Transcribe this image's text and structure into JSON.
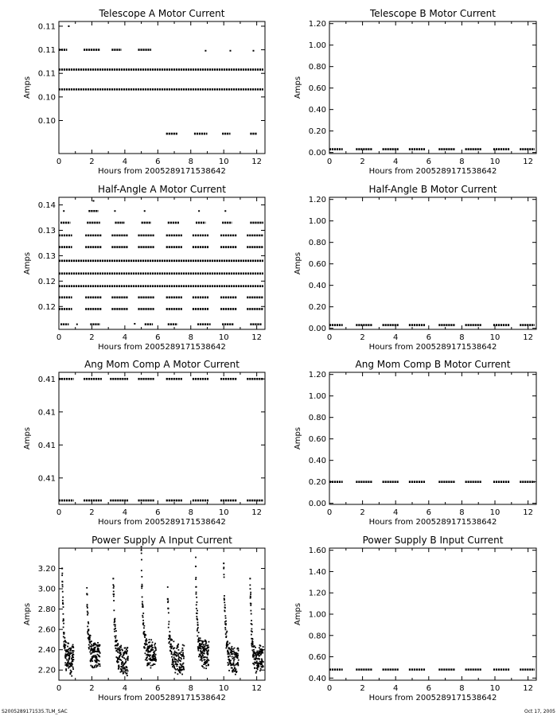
{
  "footer": {
    "left": "S2005289171535.TLM_SAC",
    "right": "Oct 17, 2005"
  },
  "chart_data": [
    {
      "type": "scatter",
      "title": "Telescope A Motor Current",
      "xlabel": "Hours from 2005289171538642",
      "ylabel": "Amps",
      "xlim": [
        0,
        12.5
      ],
      "xticks": [
        "0",
        "2",
        "4",
        "6",
        "8",
        "10",
        "12"
      ],
      "ylim": [
        0.0975,
        0.1115
      ],
      "yticks": [
        {
          "v": 0.111,
          "label": "0.11"
        },
        {
          "v": 0.1085,
          "label": "0.11"
        },
        {
          "v": 0.106,
          "label": "0.11"
        },
        {
          "v": 0.1035,
          "label": "0.10"
        },
        {
          "v": 0.101,
          "label": "0.10"
        }
      ],
      "levels": [
        {
          "v": 0.1085,
          "segments": [
            [
              0.0,
              0.5
            ],
            [
              1.5,
              2.5
            ],
            [
              3.2,
              3.8
            ],
            [
              4.8,
              5.6
            ]
          ]
        },
        {
          "v": 0.1064,
          "segments": [
            [
              0.0,
              12.4
            ]
          ]
        },
        {
          "v": 0.1043,
          "segments": [
            [
              0.0,
              12.4
            ]
          ]
        },
        {
          "v": 0.0996,
          "segments": [
            [
              6.5,
              7.2
            ],
            [
              8.2,
              9.0
            ],
            [
              9.9,
              10.4
            ],
            [
              11.6,
              12.0
            ]
          ]
        }
      ],
      "points": [
        [
          0.6,
          0.111
        ],
        [
          8.9,
          0.1084
        ],
        [
          10.4,
          0.1084
        ],
        [
          11.8,
          0.1084
        ]
      ]
    },
    {
      "type": "scatter",
      "title": "Telescope B Motor Current",
      "xlabel": "Hours from 2005289171538642",
      "ylabel": "Amps",
      "xlim": [
        0,
        12.5
      ],
      "xticks": [
        "0",
        "2",
        "4",
        "6",
        "8",
        "10",
        "12"
      ],
      "ylim": [
        -0.01,
        1.22
      ],
      "yticks": [
        {
          "v": 1.2,
          "label": "1.20"
        },
        {
          "v": 1.0,
          "label": "1.00"
        },
        {
          "v": 0.8,
          "label": "0.80"
        },
        {
          "v": 0.6,
          "label": "0.60"
        },
        {
          "v": 0.4,
          "label": "0.40"
        },
        {
          "v": 0.2,
          "label": "0.20"
        },
        {
          "v": 0.0,
          "label": "0.00"
        }
      ],
      "levels": [
        {
          "v": 0.03,
          "segments": [
            [
              0.0,
              0.8
            ],
            [
              1.6,
              2.6
            ],
            [
              3.2,
              4.2
            ],
            [
              4.8,
              5.8
            ],
            [
              6.6,
              7.6
            ],
            [
              8.2,
              9.2
            ],
            [
              9.9,
              10.9
            ],
            [
              11.5,
              12.4
            ]
          ]
        }
      ],
      "points": []
    },
    {
      "type": "scatter",
      "title": "Half-Angle A Motor Current",
      "xlabel": "Hours from 2005289171538642",
      "ylabel": "Amps",
      "xlim": [
        0,
        12.5
      ],
      "xticks": [
        "0",
        "2",
        "4",
        "6",
        "8",
        "10",
        "12"
      ],
      "ylim": [
        0.1155,
        0.1415
      ],
      "yticks": [
        {
          "v": 0.14,
          "label": "0.14"
        },
        {
          "v": 0.135,
          "label": "0.13"
        },
        {
          "v": 0.13,
          "label": "0.13"
        },
        {
          "v": 0.125,
          "label": "0.12"
        },
        {
          "v": 0.12,
          "label": "0.12"
        }
      ],
      "levels": [
        {
          "v": 0.1388,
          "segments": [
            [
              1.8,
              2.4
            ]
          ]
        },
        {
          "v": 0.1365,
          "segments": [
            [
              0.1,
              0.7
            ],
            [
              1.7,
              2.5
            ],
            [
              3.4,
              4.0
            ],
            [
              5.0,
              5.6
            ],
            [
              6.6,
              7.3
            ],
            [
              8.3,
              8.9
            ],
            [
              9.9,
              10.5
            ],
            [
              11.6,
              12.4
            ]
          ]
        },
        {
          "v": 0.134,
          "segments": [
            [
              0.0,
              0.8
            ],
            [
              1.6,
              2.6
            ],
            [
              3.2,
              4.2
            ],
            [
              4.8,
              5.8
            ],
            [
              6.5,
              7.5
            ],
            [
              8.1,
              9.1
            ],
            [
              9.8,
              10.8
            ],
            [
              11.4,
              12.4
            ]
          ]
        },
        {
          "v": 0.1317,
          "segments": [
            [
              0.0,
              0.8
            ],
            [
              1.6,
              2.6
            ],
            [
              3.2,
              4.2
            ],
            [
              4.8,
              5.8
            ],
            [
              6.5,
              7.5
            ],
            [
              8.1,
              9.1
            ],
            [
              9.8,
              10.8
            ],
            [
              11.4,
              12.4
            ]
          ]
        },
        {
          "v": 0.129,
          "segments": [
            [
              0.0,
              12.4
            ]
          ]
        },
        {
          "v": 0.1265,
          "segments": [
            [
              0.0,
              12.4
            ]
          ]
        },
        {
          "v": 0.124,
          "segments": [
            [
              0.0,
              12.4
            ]
          ]
        },
        {
          "v": 0.1218,
          "segments": [
            [
              0.0,
              0.8
            ],
            [
              1.6,
              2.6
            ],
            [
              3.2,
              4.2
            ],
            [
              4.8,
              5.8
            ],
            [
              6.5,
              7.5
            ],
            [
              8.1,
              9.1
            ],
            [
              9.8,
              10.8
            ],
            [
              11.4,
              12.4
            ]
          ]
        },
        {
          "v": 0.1195,
          "segments": [
            [
              0.0,
              0.8
            ],
            [
              1.6,
              2.6
            ],
            [
              3.2,
              4.2
            ],
            [
              4.8,
              5.8
            ],
            [
              6.5,
              7.5
            ],
            [
              8.1,
              9.1
            ],
            [
              9.8,
              10.8
            ],
            [
              11.4,
              12.4
            ]
          ]
        },
        {
          "v": 0.1165,
          "segments": [
            [
              0.1,
              0.6
            ],
            [
              1.9,
              2.5
            ],
            [
              5.2,
              5.7
            ],
            [
              6.6,
              7.2
            ],
            [
              8.4,
              9.2
            ],
            [
              9.9,
              10.6
            ],
            [
              11.6,
              12.3
            ]
          ]
        }
      ],
      "points": [
        [
          0.3,
          0.1388
        ],
        [
          3.4,
          0.1388
        ],
        [
          5.2,
          0.1388
        ],
        [
          8.5,
          0.1388
        ],
        [
          10.1,
          0.1388
        ],
        [
          2.1,
          0.1408
        ],
        [
          1.1,
          0.1165
        ],
        [
          4.6,
          0.1166
        ]
      ]
    },
    {
      "type": "scatter",
      "title": "Half-Angle B Motor Current",
      "xlabel": "Hours from 2005289171538642",
      "ylabel": "Amps",
      "xlim": [
        0,
        12.5
      ],
      "xticks": [
        "0",
        "2",
        "4",
        "6",
        "8",
        "10",
        "12"
      ],
      "ylim": [
        -0.01,
        1.22
      ],
      "yticks": [
        {
          "v": 1.2,
          "label": "1.20"
        },
        {
          "v": 1.0,
          "label": "1.00"
        },
        {
          "v": 0.8,
          "label": "0.80"
        },
        {
          "v": 0.6,
          "label": "0.60"
        },
        {
          "v": 0.4,
          "label": "0.40"
        },
        {
          "v": 0.2,
          "label": "0.20"
        },
        {
          "v": 0.0,
          "label": "0.00"
        }
      ],
      "levels": [
        {
          "v": 0.03,
          "segments": [
            [
              0.0,
              0.8
            ],
            [
              1.6,
              2.6
            ],
            [
              3.2,
              4.2
            ],
            [
              4.8,
              5.8
            ],
            [
              6.6,
              7.6
            ],
            [
              8.2,
              9.2
            ],
            [
              9.9,
              10.9
            ],
            [
              11.5,
              12.4
            ]
          ]
        }
      ],
      "points": []
    },
    {
      "type": "scatter",
      "title": "Ang Mom Comp A Motor Current",
      "xlabel": "Hours from 2005289171538642",
      "ylabel": "Amps",
      "xlim": [
        0,
        12.5
      ],
      "xticks": [
        "0",
        "2",
        "4",
        "6",
        "8",
        "10",
        "12"
      ],
      "ylim": [
        0.4055,
        0.4155
      ],
      "yticks": [
        {
          "v": 0.415,
          "label": "0.41"
        },
        {
          "v": 0.4125,
          "label": "0.41"
        },
        {
          "v": 0.41,
          "label": "0.41"
        },
        {
          "v": 0.4075,
          "label": "0.41"
        }
      ],
      "levels": [
        {
          "v": 0.415,
          "segments": [
            [
              0.0,
              0.9
            ],
            [
              1.5,
              2.6
            ],
            [
              3.1,
              4.2
            ],
            [
              4.8,
              5.8
            ],
            [
              6.5,
              7.5
            ],
            [
              8.1,
              9.1
            ],
            [
              9.8,
              10.8
            ],
            [
              11.4,
              12.4
            ]
          ]
        },
        {
          "v": 0.4058,
          "segments": [
            [
              0.0,
              0.9
            ],
            [
              1.5,
              2.6
            ],
            [
              3.1,
              4.2
            ],
            [
              4.8,
              5.8
            ],
            [
              6.5,
              7.5
            ],
            [
              8.1,
              9.1
            ],
            [
              9.8,
              10.8
            ],
            [
              11.4,
              12.4
            ]
          ]
        }
      ],
      "points": []
    },
    {
      "type": "scatter",
      "title": "Ang Mom Comp B Motor Current",
      "xlabel": "Hours from 2005289171538642",
      "ylabel": "Amps",
      "xlim": [
        0,
        12.5
      ],
      "xticks": [
        "0",
        "2",
        "4",
        "6",
        "8",
        "10",
        "12"
      ],
      "ylim": [
        -0.01,
        1.22
      ],
      "yticks": [
        {
          "v": 1.2,
          "label": "1.20"
        },
        {
          "v": 1.0,
          "label": "1.00"
        },
        {
          "v": 0.8,
          "label": "0.80"
        },
        {
          "v": 0.6,
          "label": "0.60"
        },
        {
          "v": 0.4,
          "label": "0.40"
        },
        {
          "v": 0.2,
          "label": "0.20"
        },
        {
          "v": 0.0,
          "label": "0.00"
        }
      ],
      "levels": [
        {
          "v": 0.2,
          "segments": [
            [
              0.0,
              0.8
            ],
            [
              1.6,
              2.6
            ],
            [
              3.2,
              4.2
            ],
            [
              4.8,
              5.8
            ],
            [
              6.6,
              7.6
            ],
            [
              8.2,
              9.2
            ],
            [
              9.9,
              10.9
            ],
            [
              11.5,
              12.4
            ]
          ]
        }
      ],
      "points": []
    },
    {
      "type": "scatter",
      "title": "Power Supply A Input Current",
      "xlabel": "Hours from 2005289171538642",
      "ylabel": "Amps",
      "xlim": [
        0,
        12.5
      ],
      "xticks": [
        "0",
        "2",
        "4",
        "6",
        "8",
        "10",
        "12"
      ],
      "ylim": [
        2.1,
        3.4
      ],
      "yticks": [
        {
          "v": 3.2,
          "label": "3.20"
        },
        {
          "v": 3.0,
          "label": "3.00"
        },
        {
          "v": 2.8,
          "label": "2.80"
        },
        {
          "v": 2.6,
          "label": "2.60"
        },
        {
          "v": 2.4,
          "label": "2.40"
        },
        {
          "v": 2.2,
          "label": "2.20"
        }
      ],
      "spikes": [
        {
          "x": 0.2,
          "peak": 3.2,
          "base": 2.3,
          "end": 0.9
        },
        {
          "x": 1.7,
          "peak": 2.95,
          "base": 2.35,
          "end": 2.5
        },
        {
          "x": 3.3,
          "peak": 3.1,
          "base": 2.3,
          "end": 4.2
        },
        {
          "x": 5.0,
          "peak": 3.38,
          "base": 2.35,
          "end": 5.9
        },
        {
          "x": 6.6,
          "peak": 2.9,
          "base": 2.3,
          "end": 7.6
        },
        {
          "x": 8.3,
          "peak": 3.22,
          "base": 2.35,
          "end": 9.1
        },
        {
          "x": 10.0,
          "peak": 3.25,
          "base": 2.3,
          "end": 10.9
        },
        {
          "x": 11.6,
          "peak": 3.1,
          "base": 2.3,
          "end": 12.4
        }
      ],
      "points": []
    },
    {
      "type": "scatter",
      "title": "Power Supply B Input Current",
      "xlabel": "Hours from 2005289171538642",
      "ylabel": "Amps",
      "xlim": [
        0,
        12.5
      ],
      "xticks": [
        "0",
        "2",
        "4",
        "6",
        "8",
        "10",
        "12"
      ],
      "ylim": [
        0.38,
        1.62
      ],
      "yticks": [
        {
          "v": 1.6,
          "label": "1.60"
        },
        {
          "v": 1.4,
          "label": "1.40"
        },
        {
          "v": 1.2,
          "label": "1.20"
        },
        {
          "v": 1.0,
          "label": "1.00"
        },
        {
          "v": 0.8,
          "label": "0.80"
        },
        {
          "v": 0.6,
          "label": "0.60"
        },
        {
          "v": 0.4,
          "label": "0.40"
        }
      ],
      "levels": [
        {
          "v": 0.48,
          "segments": [
            [
              0.0,
              0.8
            ],
            [
              1.6,
              2.6
            ],
            [
              3.2,
              4.2
            ],
            [
              4.8,
              5.8
            ],
            [
              6.6,
              7.6
            ],
            [
              8.2,
              9.2
            ],
            [
              9.9,
              10.9
            ],
            [
              11.5,
              12.4
            ]
          ]
        }
      ],
      "points": []
    }
  ]
}
